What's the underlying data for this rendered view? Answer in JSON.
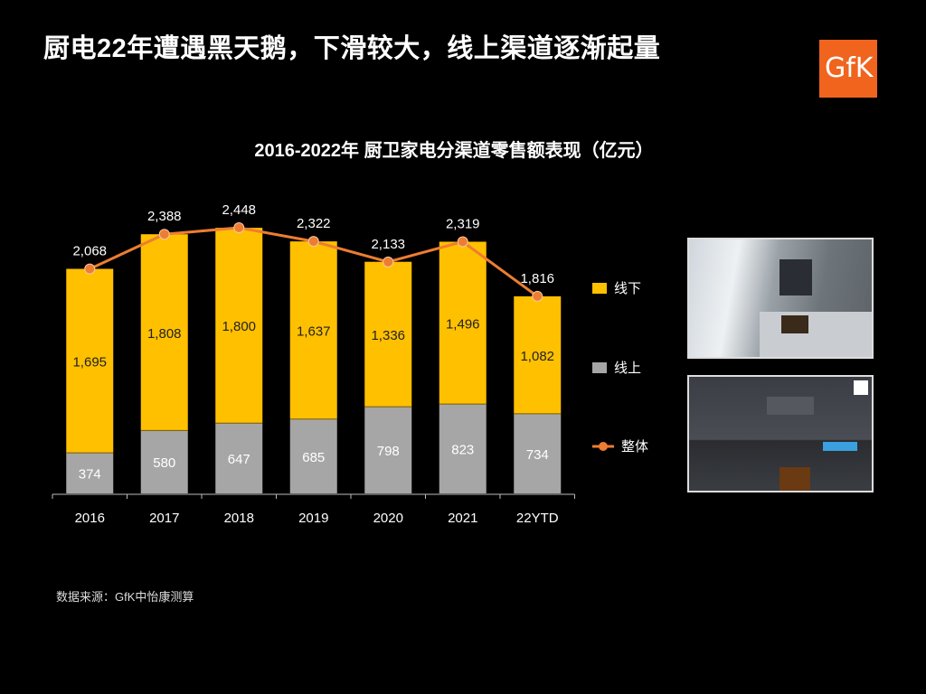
{
  "slide": {
    "title": "厨电22年遭遇黑天鹅，下滑较大，线上渠道逐渐起量",
    "logo_text": "GfK",
    "footer": "数据来源：GfK中怡康测算",
    "colors": {
      "offline": "#ffc000",
      "online": "#a6a6a6",
      "total": "#ed7d31",
      "logo": "#f0641e"
    }
  },
  "chart_data": {
    "type": "bar",
    "stacked": true,
    "title": "2016-2022年 厨卫家电分渠道零售额表现（亿元）",
    "categories": [
      "2016",
      "2017",
      "2018",
      "2019",
      "2020",
      "2021",
      "22YTD"
    ],
    "series": [
      {
        "name": "线上",
        "kind": "bar",
        "color": "#a6a6a6",
        "values": [
          374,
          580,
          647,
          685,
          798,
          823,
          734
        ]
      },
      {
        "name": "线下",
        "kind": "bar",
        "color": "#ffc000",
        "values": [
          1695,
          1808,
          1800,
          1637,
          1336,
          1496,
          1082
        ]
      },
      {
        "name": "整体",
        "kind": "line",
        "color": "#ed7d31",
        "values": [
          2068,
          2388,
          2448,
          2322,
          2133,
          2319,
          1816
        ]
      }
    ],
    "value_labels": {
      "online": [
        "374",
        "580",
        "647",
        "685",
        "798",
        "823",
        "734"
      ],
      "offline": [
        "1,695",
        "1,808",
        "1,800",
        "1,637",
        "1,336",
        "1,496",
        "1,082"
      ],
      "total": [
        "2,068",
        "2,388",
        "2,448",
        "2,322",
        "2,133",
        "2,319",
        "1,816"
      ]
    },
    "ylim": [
      0,
      2600
    ],
    "grid": false,
    "y_axis_visible": false,
    "legend": {
      "placement": "right",
      "items": [
        "线下",
        "线上",
        "整体"
      ]
    }
  }
}
